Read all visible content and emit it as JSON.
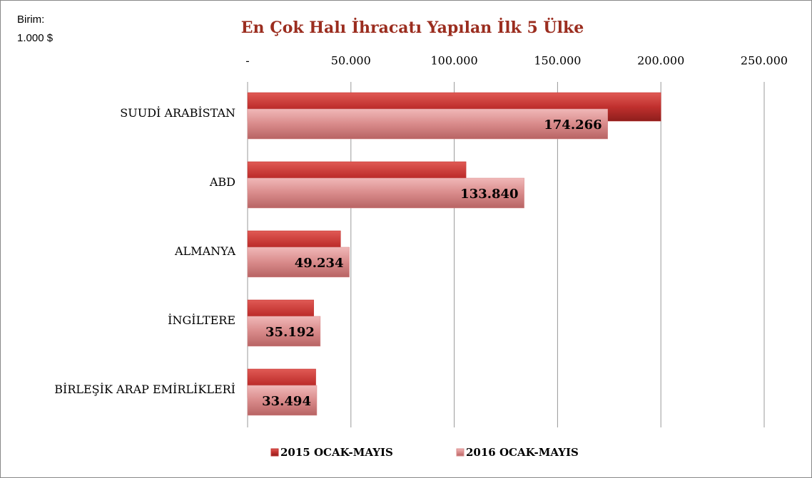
{
  "chart_data": {
    "type": "hbar",
    "title": "En Çok Halı İhracatı Yapılan İlk 5 Ülke",
    "unit_label": [
      "Birim:",
      "1.000 $"
    ],
    "categories": [
      "SUUDİ ARABİSTAN",
      "ABD",
      "ALMANYA",
      "İNGİLTERE",
      "BİRLEŞİK ARAP EMİRLİKLERİ"
    ],
    "series": [
      {
        "name": "2015 OCAK-MAYIS",
        "color": "#c0302e",
        "values": [
          200000,
          105700,
          45000,
          32000,
          33000
        ]
      },
      {
        "name": "2016 OCAK-MAYIS",
        "color": "#d98b8b",
        "values": [
          174266,
          133840,
          49234,
          35192,
          33494
        ],
        "value_labels": [
          "174.266",
          "133.840",
          "49.234",
          "35.192",
          "33.494"
        ]
      }
    ],
    "xlim": [
      0,
      250000
    ],
    "xticks": [
      {
        "value": 0,
        "label": "-"
      },
      {
        "value": 50000,
        "label": "50.000"
      },
      {
        "value": 100000,
        "label": "100.000"
      },
      {
        "value": 150000,
        "label": "150.000"
      },
      {
        "value": 200000,
        "label": "200.000"
      },
      {
        "value": 250000,
        "label": "250.000"
      }
    ],
    "grid": true,
    "legend": "bottom"
  }
}
